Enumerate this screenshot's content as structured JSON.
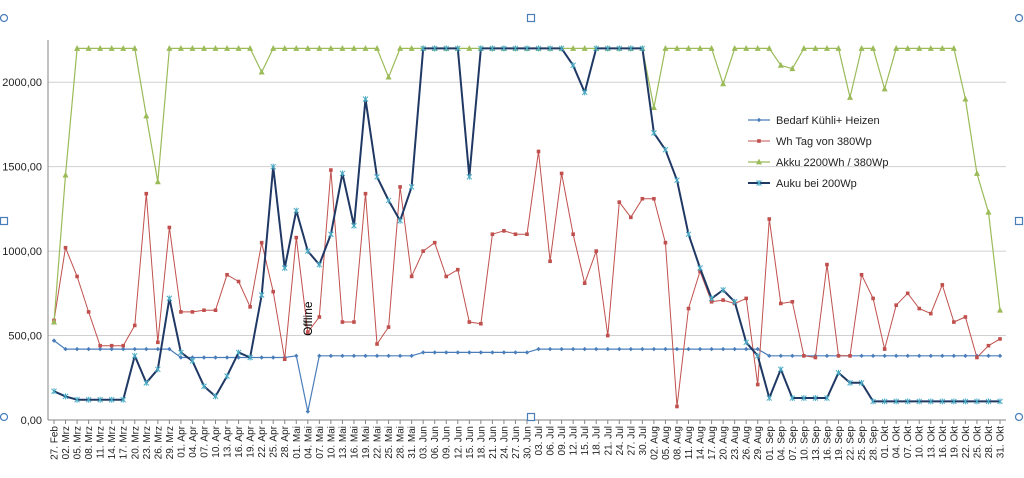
{
  "chart_data": {
    "type": "line",
    "title": "",
    "xlabel": "",
    "ylabel": "",
    "ylim": [
      0,
      2250
    ],
    "y_ticks": [
      0,
      500,
      1000,
      1500,
      2000
    ],
    "y_tick_labels": [
      "0,00",
      "500,00",
      "1000,00",
      "1500,00",
      "2000,00"
    ],
    "grid": "horizontal",
    "legend_position": "right",
    "x": [
      "27. Feb",
      "02. Mrz",
      "05. Mrz",
      "08. Mrz",
      "11. Mrz",
      "14. Mrz",
      "17. Mrz",
      "20. Mrz",
      "23. Mrz",
      "26. Mrz",
      "29. Mrz",
      "01. Apr",
      "04. Apr",
      "07. Apr",
      "10. Apr",
      "13. Apr",
      "16. Apr",
      "19. Apr",
      "22. Apr",
      "25. Apr",
      "28. Apr",
      "01. Mai",
      "04. Mai",
      "07. Mai",
      "10. Mai",
      "13. Mai",
      "16. Mai",
      "19. Mai",
      "22. Mai",
      "25. Mai",
      "28. Mai",
      "31. Mai",
      "03. Jun",
      "06. Jun",
      "09. Jun",
      "12. Jun",
      "15. Jun",
      "18. Jun",
      "21. Jun",
      "24. Jun",
      "27. Jun",
      "30. Jun",
      "03. Jul",
      "06. Jul",
      "09. Jul",
      "12. Jul",
      "15. Jul",
      "18. Jul",
      "21. Jul",
      "24. Jul",
      "27. Jul",
      "30. Jul",
      "02. Aug",
      "05. Aug",
      "08. Aug",
      "11. Aug",
      "14. Aug",
      "17. Aug",
      "20. Aug",
      "23. Aug",
      "26. Aug",
      "29. Aug",
      "01. Sep",
      "04. Sep",
      "07. Sep",
      "10. Sep",
      "13. Sep",
      "16. Sep",
      "19. Sep",
      "22. Sep",
      "25. Sep",
      "28. Sep",
      "01. Okt",
      "04. Okt",
      "07. Okt",
      "10. Okt",
      "13. Okt",
      "16. Okt",
      "19. Okt",
      "22. Okt",
      "25. Okt",
      "28. Okt",
      "31. Okt"
    ],
    "annotations": [
      {
        "text": "Offline",
        "x": "04. Mai",
        "y": 600
      }
    ],
    "series": [
      {
        "name": "Bedarf Kühli+ Heizen",
        "color": "#4a7ebb",
        "marker": "diamond",
        "values": [
          470,
          420,
          420,
          420,
          420,
          420,
          420,
          420,
          420,
          420,
          420,
          370,
          370,
          370,
          370,
          370,
          370,
          370,
          370,
          370,
          370,
          380,
          50,
          380,
          380,
          380,
          380,
          380,
          380,
          380,
          380,
          380,
          400,
          400,
          400,
          400,
          400,
          400,
          400,
          400,
          400,
          400,
          420,
          420,
          420,
          420,
          420,
          420,
          420,
          420,
          420,
          420,
          420,
          420,
          420,
          420,
          420,
          420,
          420,
          420,
          420,
          420,
          380,
          380,
          380,
          380,
          380,
          380,
          380,
          380,
          380,
          380,
          380,
          380,
          380,
          380,
          380,
          380,
          380,
          380,
          380,
          380,
          380
        ]
      },
      {
        "name": "Wh Tag von 380Wp",
        "color": "#c0504d",
        "marker": "square",
        "values": [
          590,
          1020,
          850,
          640,
          440,
          440,
          440,
          560,
          1340,
          460,
          1140,
          640,
          640,
          650,
          650,
          860,
          820,
          670,
          1050,
          760,
          360,
          1080,
          520,
          610,
          1480,
          580,
          580,
          1340,
          450,
          550,
          1380,
          850,
          1000,
          1050,
          850,
          890,
          580,
          570,
          1100,
          1120,
          1100,
          1100,
          1590,
          940,
          1460,
          1100,
          810,
          1000,
          500,
          1290,
          1200,
          1310,
          1310,
          1050,
          80,
          660,
          880,
          700,
          710,
          690,
          720,
          210,
          1190,
          690,
          700,
          380,
          370,
          920,
          380,
          380,
          860,
          720,
          420,
          680,
          750,
          660,
          630,
          800,
          580,
          610,
          370,
          440,
          480
        ]
      },
      {
        "name": "Akku 2200Wh / 380Wp",
        "color": "#9bbb59",
        "marker": "triangle",
        "values": [
          580,
          1450,
          2200,
          2200,
          2200,
          2200,
          2200,
          2200,
          1800,
          1410,
          2200,
          2200,
          2200,
          2200,
          2200,
          2200,
          2200,
          2200,
          2060,
          2200,
          2200,
          2200,
          2200,
          2200,
          2200,
          2200,
          2200,
          2200,
          2200,
          2030,
          2200,
          2200,
          2200,
          2200,
          2200,
          2200,
          2200,
          2200,
          2200,
          2200,
          2200,
          2200,
          2200,
          2200,
          2200,
          2200,
          2200,
          2200,
          2200,
          2200,
          2200,
          2200,
          1850,
          2200,
          2200,
          2200,
          2200,
          2200,
          1990,
          2200,
          2200,
          2200,
          2200,
          2100,
          2080,
          2200,
          2200,
          2200,
          2200,
          1910,
          2200,
          2200,
          1960,
          2200,
          2200,
          2200,
          2200,
          2200,
          2200,
          1900,
          1460,
          1230,
          650
        ]
      },
      {
        "name": "Auku bei 200Wp",
        "color": "#1f3864",
        "marker": "star",
        "values": [
          170,
          140,
          120,
          120,
          120,
          120,
          120,
          380,
          220,
          300,
          720,
          400,
          350,
          200,
          140,
          260,
          400,
          370,
          740,
          1500,
          900,
          1240,
          1000,
          920,
          1100,
          1460,
          1150,
          1900,
          1440,
          1300,
          1180,
          1380,
          2200,
          2200,
          2200,
          2200,
          1440,
          2200,
          2200,
          2200,
          2200,
          2200,
          2200,
          2200,
          2200,
          2100,
          1940,
          2200,
          2200,
          2200,
          2200,
          2200,
          1700,
          1600,
          1420,
          1100,
          900,
          720,
          770,
          700,
          460,
          380,
          130,
          300,
          130,
          130,
          130,
          130,
          280,
          220,
          220,
          110,
          110,
          110,
          110,
          110,
          110,
          110,
          110,
          110,
          110,
          110,
          110
        ]
      }
    ]
  },
  "colors": {
    "grid": "#d0d0d0",
    "axis": "#868686",
    "handles": "#4a7ebb"
  }
}
